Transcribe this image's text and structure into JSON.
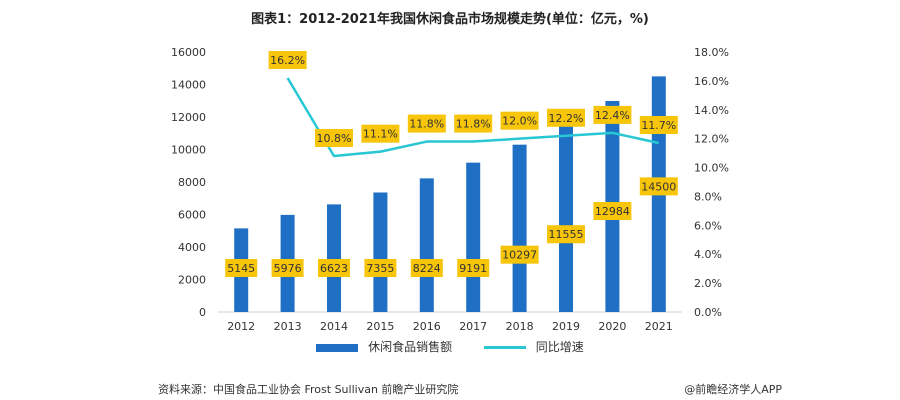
{
  "chart_data": {
    "type": "bar",
    "title": "图表1：2012-2021年我国休闲食品市场规模走势(单位：亿元，%)",
    "categories": [
      "2012",
      "2013",
      "2014",
      "2015",
      "2016",
      "2017",
      "2018",
      "2019",
      "2020",
      "2021"
    ],
    "series": [
      {
        "name": "休闲食品销售额",
        "type": "bar",
        "axis": "left",
        "values": [
          5145,
          5976,
          6623,
          7355,
          8224,
          9191,
          10297,
          11555,
          12984,
          14500
        ],
        "labels": [
          "5145",
          "5976",
          "6623",
          "7355",
          "8224",
          "9191",
          "10297",
          "11555",
          "12984",
          "14500"
        ]
      },
      {
        "name": "同比增速",
        "type": "line",
        "axis": "right",
        "values": [
          null,
          16.2,
          10.8,
          11.1,
          11.8,
          11.8,
          12.0,
          12.2,
          12.4,
          11.7
        ],
        "labels": [
          "",
          "16.2%",
          "10.8%",
          "11.1%",
          "11.8%",
          "11.8%",
          "12.0%",
          "12.2%",
          "12.4%",
          "11.7%"
        ]
      }
    ],
    "y_left": {
      "ylim": [
        0,
        16000
      ],
      "ticks": [
        0,
        2000,
        4000,
        6000,
        8000,
        10000,
        12000,
        14000,
        16000
      ],
      "tick_labels": [
        "0",
        "2000",
        "4000",
        "6000",
        "8000",
        "10000",
        "12000",
        "14000",
        "16000"
      ]
    },
    "y_right": {
      "ylim": [
        0,
        18
      ],
      "ticks": [
        0,
        2,
        4,
        6,
        8,
        10,
        12,
        14,
        16,
        18
      ],
      "tick_labels": [
        "0.0%",
        "2.0%",
        "4.0%",
        "6.0%",
        "8.0%",
        "10.0%",
        "12.0%",
        "14.0%",
        "16.0%",
        "18.0%"
      ]
    },
    "grid": false,
    "legend": "bottom",
    "colors": {
      "bar": "#1f6fc5",
      "line": "#27c7d4",
      "label_bg": "#f7c50a"
    }
  },
  "legend": {
    "bar_label": "休闲食品销售额",
    "line_label": "同比增速"
  },
  "footer": {
    "source": "资料来源：中国食品工业协会 Frost Sullivan 前瞻产业研究院",
    "credit": "@前瞻经济学人APP"
  }
}
